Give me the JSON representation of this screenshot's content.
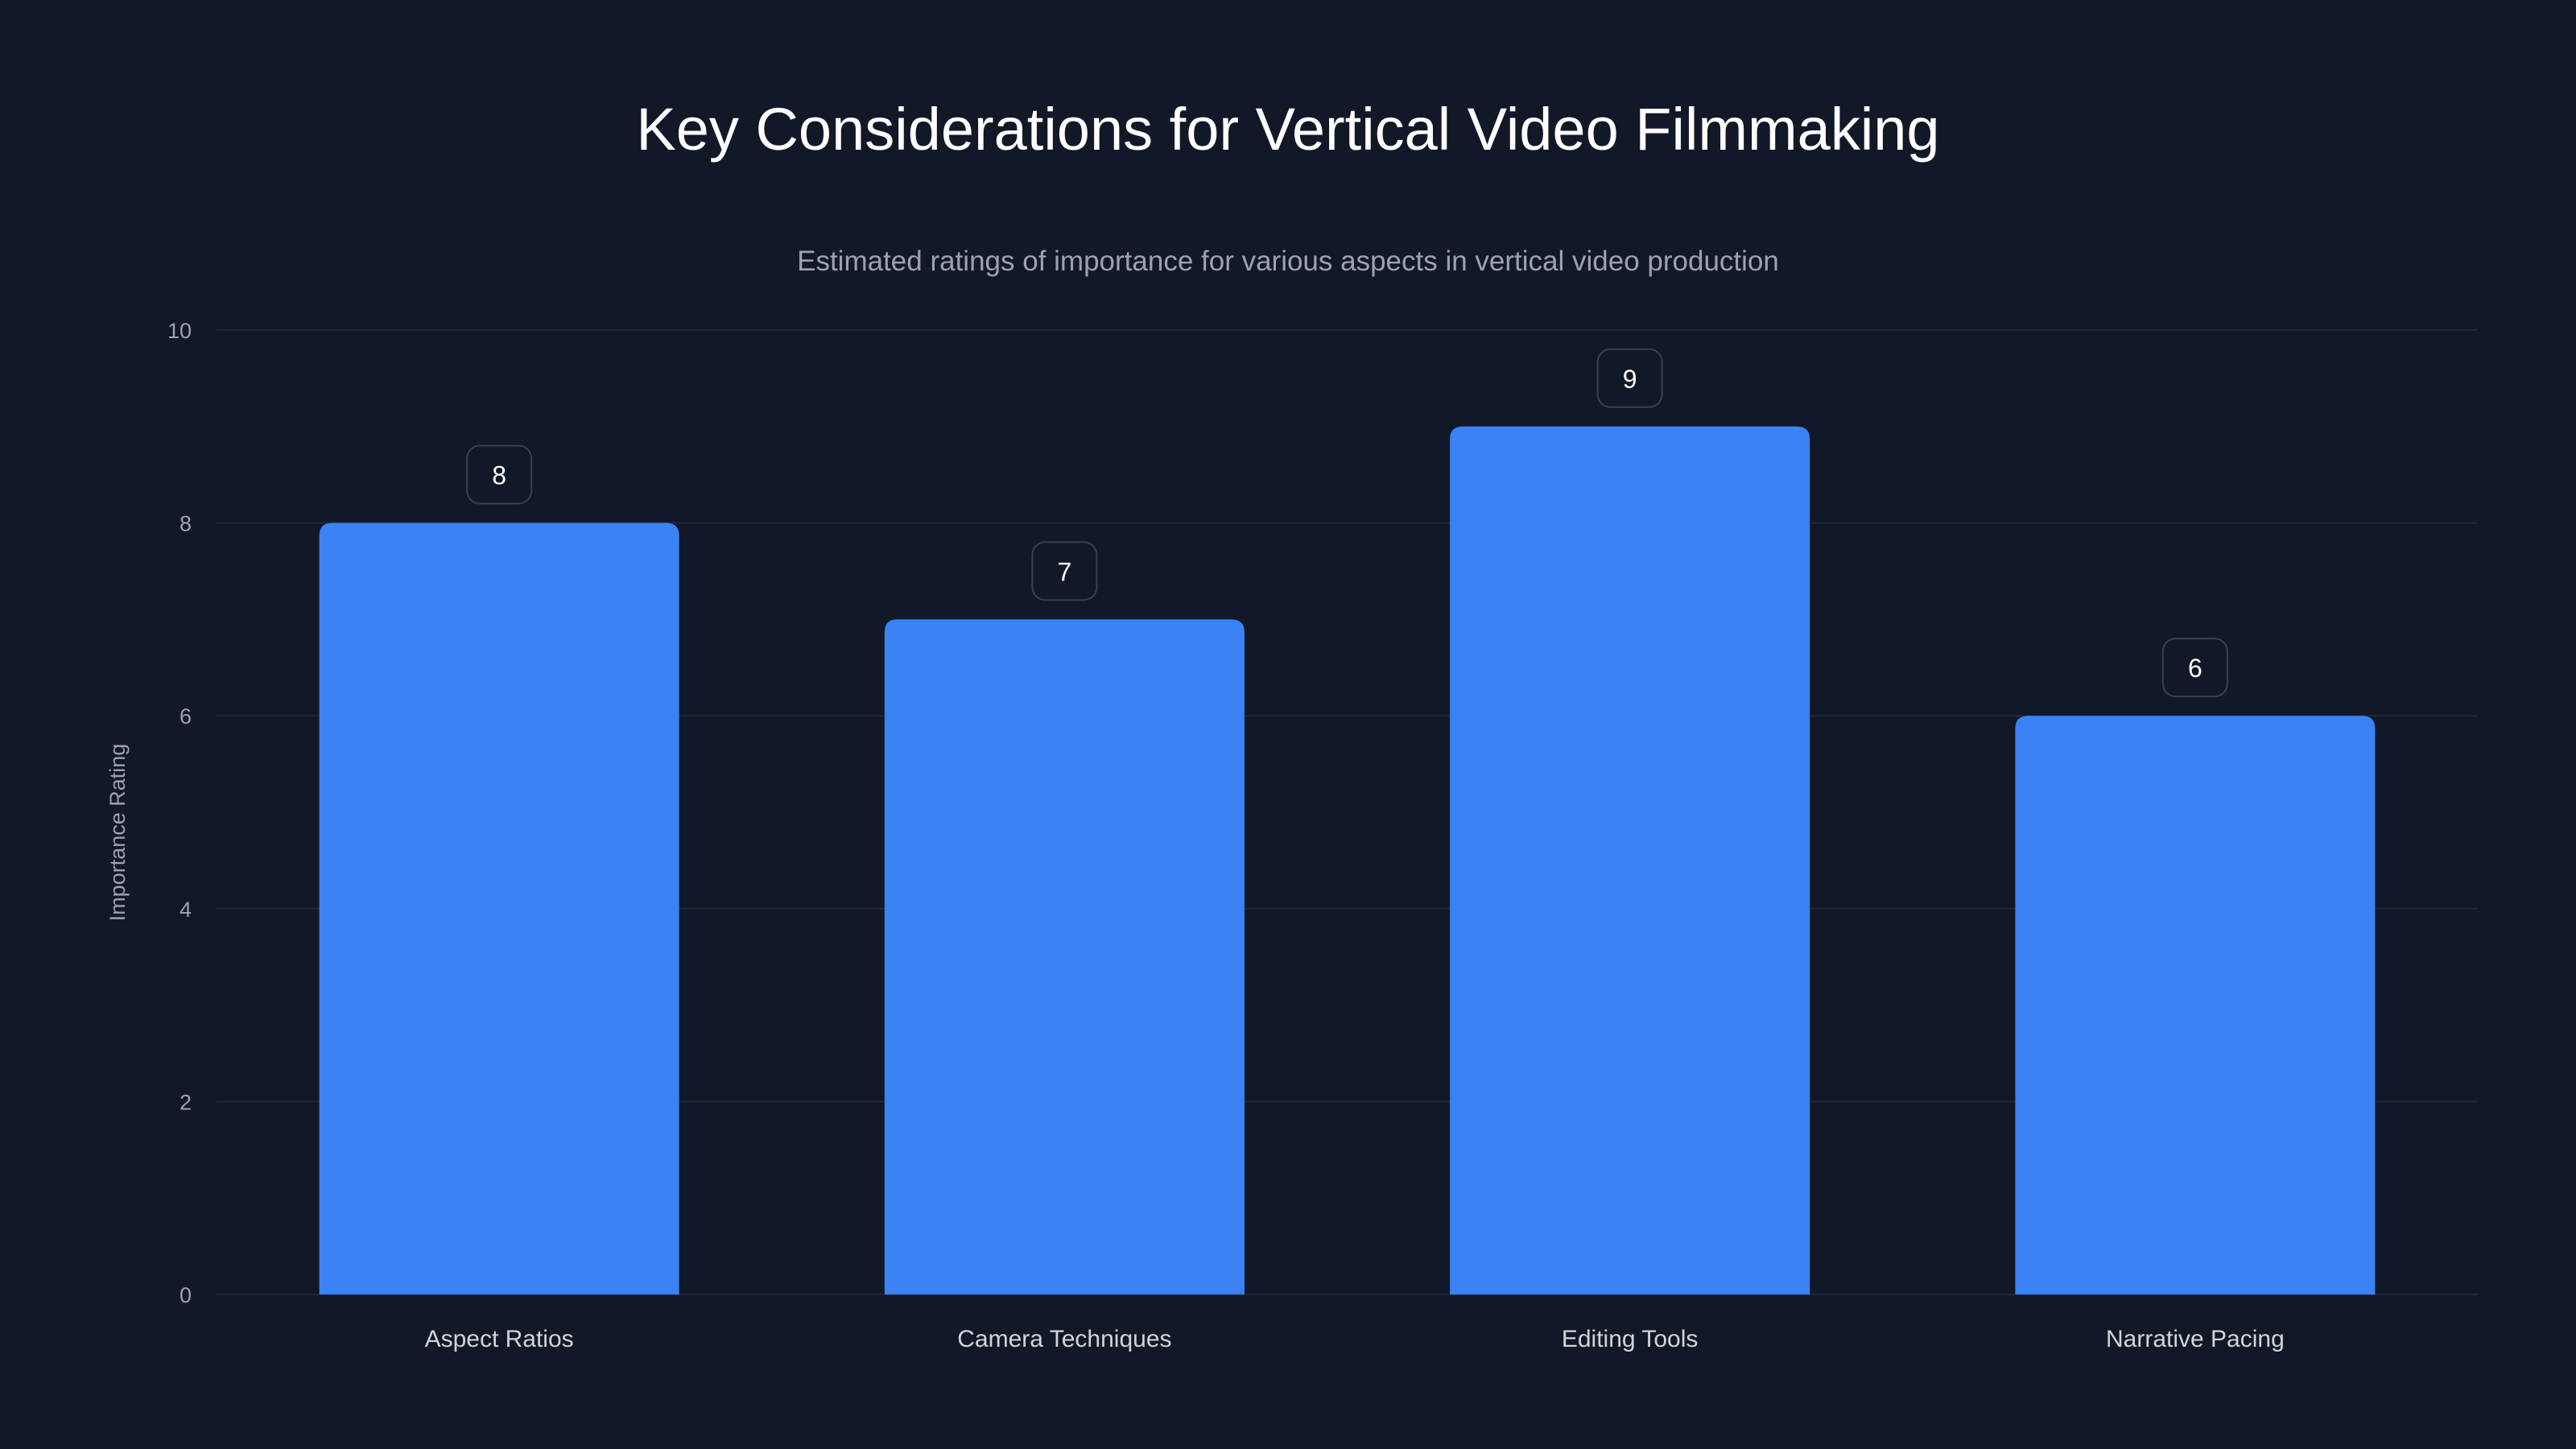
{
  "chart_data": {
    "type": "bar",
    "title": "Key Considerations for Vertical Video Filmmaking",
    "subtitle": "Estimated ratings of importance for various aspects in vertical video production",
    "categories": [
      "Aspect Ratios",
      "Camera Techniques",
      "Editing Tools",
      "Narrative Pacing"
    ],
    "values": [
      8,
      7,
      9,
      6
    ],
    "xlabel": "",
    "ylabel": "Importance Rating",
    "ylim": [
      0,
      10
    ],
    "yticks": [
      0,
      2,
      4,
      6,
      8,
      10
    ],
    "grid": true,
    "colors": {
      "bar": "#3b82f6",
      "background": "#111827",
      "grid": "#1f2937",
      "label_border": "#374151"
    }
  }
}
